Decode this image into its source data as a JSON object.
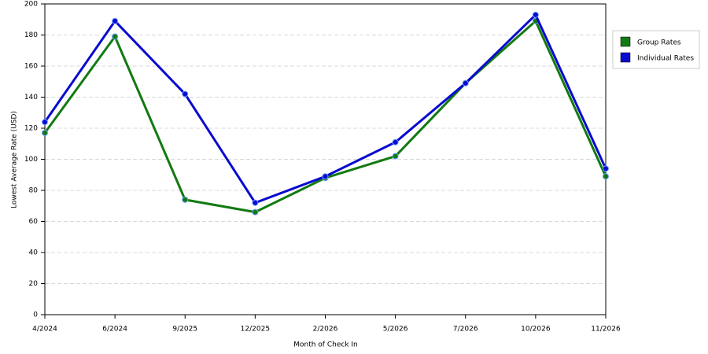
{
  "chart_data": {
    "type": "line",
    "x_label": "Month of Check In",
    "y_label": "Lowest Average Rate (USD)",
    "categories": [
      "4/2024",
      "6/2024",
      "9/2025",
      "12/2025",
      "2/2026",
      "5/2026",
      "7/2026",
      "10/2026",
      "11/2026"
    ],
    "series": [
      {
        "name": "Group Rates",
        "color": "#117a11",
        "values": [
          117,
          179,
          74,
          66,
          88,
          102,
          149,
          189,
          89
        ]
      },
      {
        "name": "Individual Rates",
        "color": "#0a0ad0",
        "values": [
          124,
          189,
          142,
          72,
          89,
          111,
          149,
          193,
          94
        ]
      }
    ],
    "ylim": [
      0,
      200
    ],
    "yticks": [
      0,
      20,
      40,
      60,
      80,
      100,
      120,
      140,
      160,
      180,
      200
    ],
    "grid": true,
    "legend": "right"
  }
}
